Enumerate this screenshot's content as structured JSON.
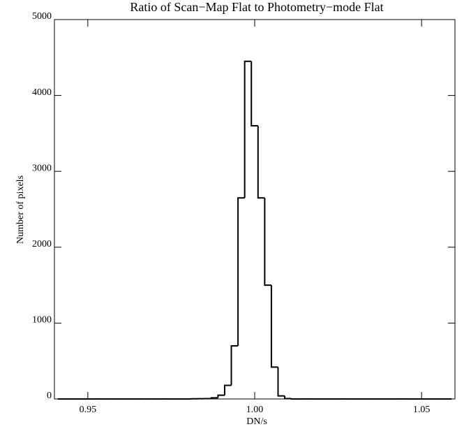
{
  "chart_data": {
    "type": "histogram",
    "title": "Ratio of Scan−Map Flat to Photometry−mode Flat",
    "xlabel": "DN/s",
    "ylabel": "Number of pixels",
    "bins": [
      0.941,
      0.943,
      0.945,
      0.947,
      0.949,
      0.951,
      0.953,
      0.955,
      0.957,
      0.959,
      0.961,
      0.963,
      0.965,
      0.967,
      0.969,
      0.971,
      0.973,
      0.975,
      0.977,
      0.979,
      0.981,
      0.983,
      0.985,
      0.987,
      0.989,
      0.991,
      0.993,
      0.995,
      0.997,
      0.999,
      1.001,
      1.003,
      1.005,
      1.007,
      1.009,
      1.011,
      1.013,
      1.015,
      1.017,
      1.019,
      1.021,
      1.023,
      1.025,
      1.027,
      1.029,
      1.031,
      1.033,
      1.035,
      1.037,
      1.039,
      1.041,
      1.043,
      1.045,
      1.047,
      1.049,
      1.051,
      1.053,
      1.055,
      1.057,
      1.059
    ],
    "values": [
      0,
      0,
      0,
      0,
      0,
      0,
      0,
      0,
      0,
      0,
      0,
      0,
      0,
      0,
      0,
      0,
      0,
      0,
      0,
      0,
      2,
      3,
      5,
      15,
      50,
      180,
      700,
      2650,
      4450,
      3600,
      2650,
      1500,
      420,
      40,
      5,
      0,
      0,
      0,
      0,
      0,
      0,
      0,
      0,
      0,
      0,
      0,
      0,
      0,
      0,
      0,
      0,
      0,
      0,
      0,
      0,
      0,
      0,
      0,
      0
    ],
    "color": "#000000",
    "xlim": [
      0.94,
      1.06
    ],
    "xticks": [
      0.95,
      {
        "value": 1,
        "label": "1.00"
      },
      1.05
    ],
    "ylim": [
      0,
      5000
    ],
    "yticks": [
      0,
      1000,
      2000,
      3000,
      4000,
      5000
    ]
  }
}
